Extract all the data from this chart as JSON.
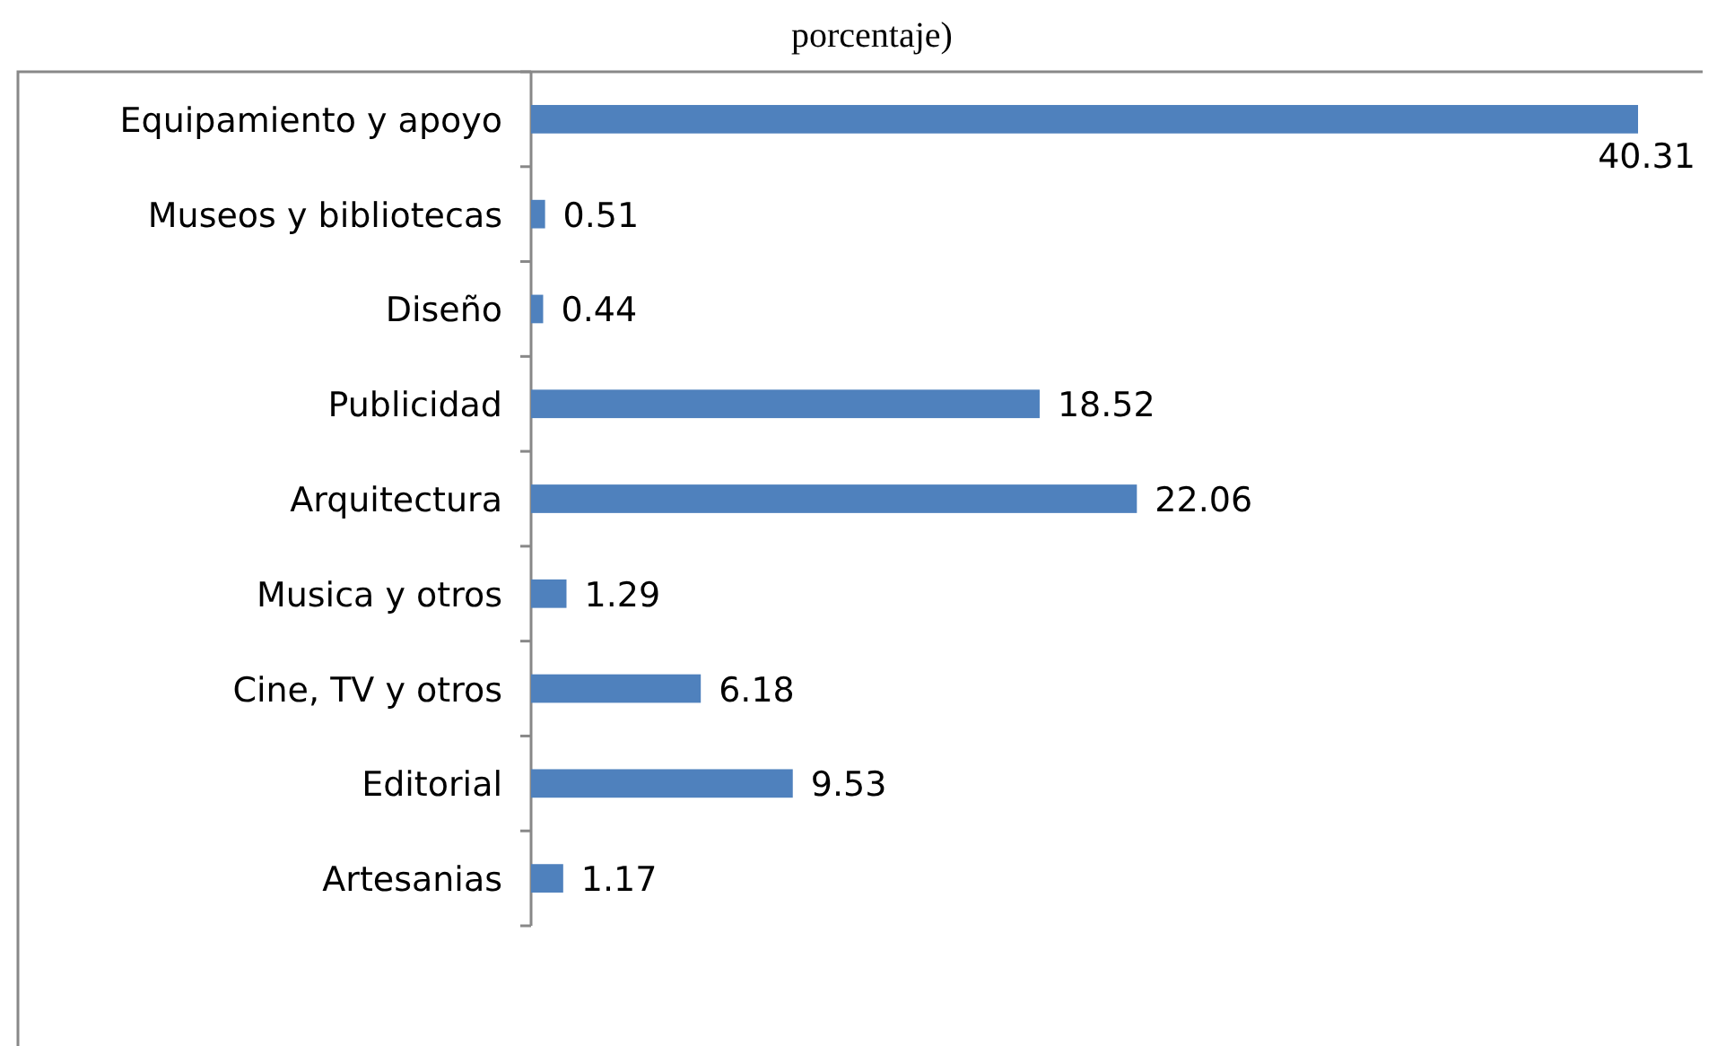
{
  "chart_data": {
    "type": "bar",
    "orientation": "horizontal",
    "title": "porcentaje)",
    "categories": [
      "Equipamiento y apoyo",
      "Museos y bibliotecas",
      "Diseño",
      "Publicidad",
      "Arquitectura",
      "Musica y otros",
      "Cine, TV y otros",
      "Editorial",
      "Artesanias"
    ],
    "values": [
      40.31,
      0.51,
      0.44,
      18.52,
      22.06,
      1.29,
      6.18,
      9.53,
      1.17
    ],
    "color": "#4f81bd",
    "data_labels": true
  }
}
